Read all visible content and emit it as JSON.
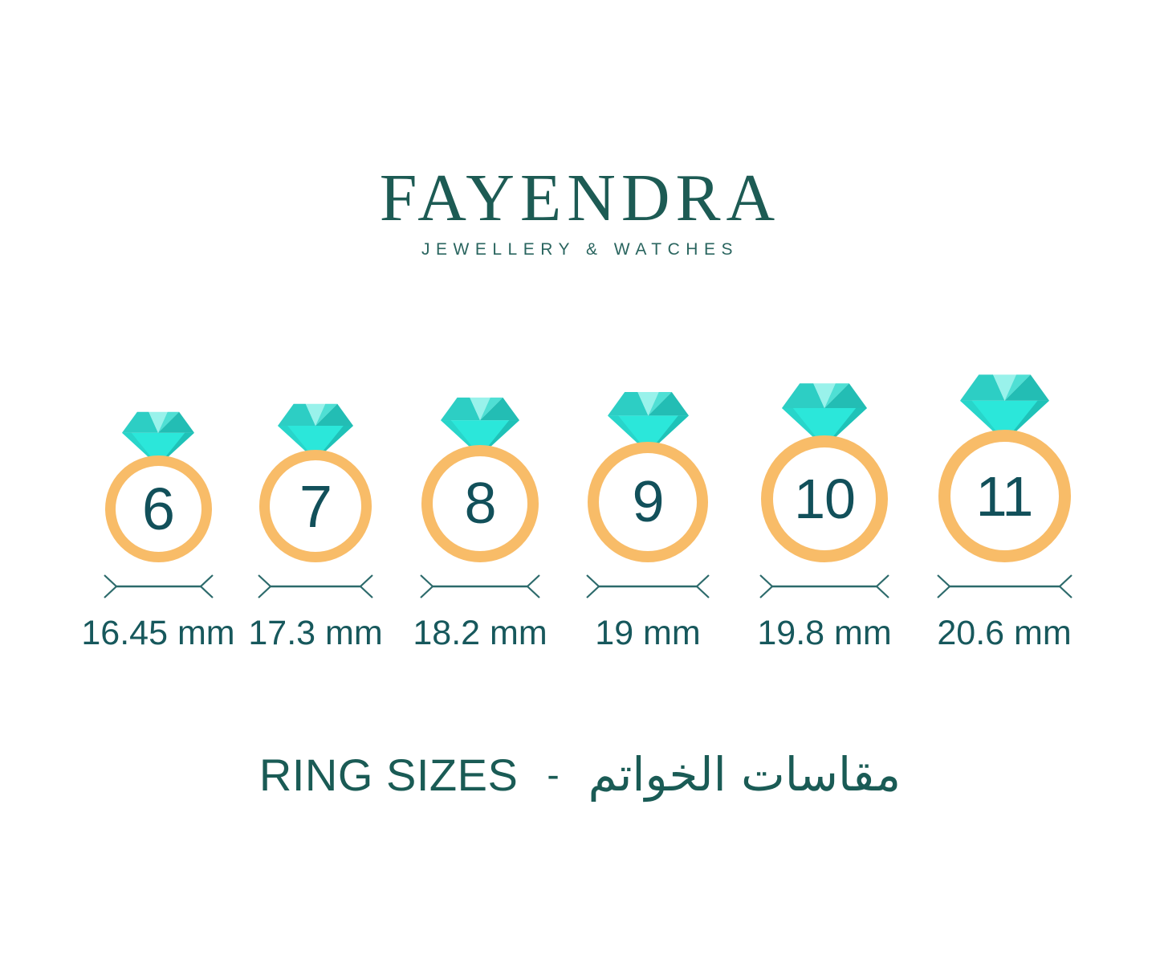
{
  "brand": {
    "name": "FAYENDRA",
    "tagline": "JEWELLERY & WATCHES"
  },
  "rings": [
    {
      "number": "6",
      "size_label": "16.45 mm"
    },
    {
      "number": "7",
      "size_label": "17.3 mm"
    },
    {
      "number": "8",
      "size_label": "18.2 mm"
    },
    {
      "number": "9",
      "size_label": "19 mm"
    },
    {
      "number": "10",
      "size_label": "19.8 mm"
    },
    {
      "number": "11",
      "size_label": "20.6 mm"
    }
  ],
  "footer": {
    "title_en": "RING SIZES",
    "separator": "-",
    "title_ar": "مقاسات الخواتم"
  },
  "colors": {
    "teal_text": "#12505A",
    "logo_teal": "#1D5B54",
    "label_teal": "#17585C",
    "measure_line": "#2C6A6B",
    "band_orange": "#F8BC68",
    "diamond_bright": "#2BE7DA",
    "diamond_light": "#99F2EB",
    "diamond_medium": "#2DCEC4",
    "diamond_dark": "#23BDB4"
  },
  "icons": {
    "gem": "diamond-icon",
    "measure": "measure-arrows-icon"
  }
}
